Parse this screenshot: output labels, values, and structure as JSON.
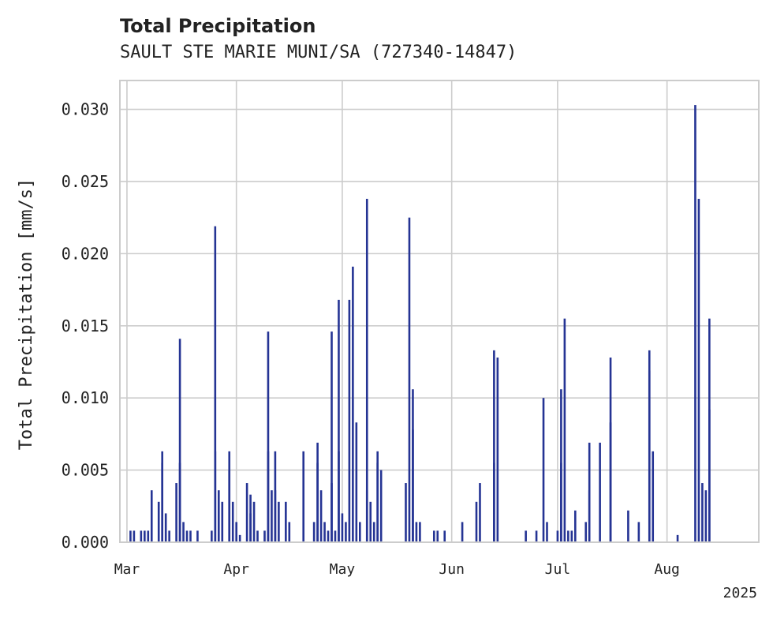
{
  "chart_data": {
    "type": "bar",
    "title": "Total Precipitation",
    "subtitle": "SAULT STE MARIE MUNI/SA (727340-14847)",
    "ylabel": "Total Precipitation [mm/s]",
    "ylim": [
      0,
      0.032
    ],
    "xlim": [
      "2025-02-27",
      "2025-08-27"
    ],
    "yticks": [
      "0.000",
      "0.005",
      "0.010",
      "0.015",
      "0.020",
      "0.025",
      "0.030"
    ],
    "xticks": [
      {
        "date": "2025-03-01",
        "label": "Mar"
      },
      {
        "date": "2025-04-01",
        "label": "Apr"
      },
      {
        "date": "2025-05-01",
        "label": "May"
      },
      {
        "date": "2025-06-01",
        "label": "Jun"
      },
      {
        "date": "2025-07-01",
        "label": "Jul"
      },
      {
        "date": "2025-08-01",
        "label": "Aug"
      }
    ],
    "year_label": "2025",
    "grid": true,
    "bar_color": "#253494",
    "points": [
      [
        "2025-03-02",
        0.0008
      ],
      [
        "2025-03-03",
        0.0008
      ],
      [
        "2025-03-05",
        0.0008
      ],
      [
        "2025-03-06",
        0.0008
      ],
      [
        "2025-03-07",
        0.0008
      ],
      [
        "2025-03-08",
        0.0036
      ],
      [
        "2025-03-10",
        0.0028
      ],
      [
        "2025-03-11",
        0.0055
      ],
      [
        "2025-03-11",
        0.0063
      ],
      [
        "2025-03-12",
        0.002
      ],
      [
        "2025-03-13",
        0.0008
      ],
      [
        "2025-03-15",
        0.0041
      ],
      [
        "2025-03-16",
        0.0055
      ],
      [
        "2025-03-16",
        0.0141
      ],
      [
        "2025-03-17",
        0.0014
      ],
      [
        "2025-03-18",
        0.0008
      ],
      [
        "2025-03-19",
        0.0008
      ],
      [
        "2025-03-21",
        0.0008
      ],
      [
        "2025-03-25",
        0.0008
      ],
      [
        "2025-03-26",
        0.0063
      ],
      [
        "2025-03-26",
        0.0219
      ],
      [
        "2025-03-27",
        0.0036
      ],
      [
        "2025-03-28",
        0.0028
      ],
      [
        "2025-03-30",
        0.005
      ],
      [
        "2025-03-30",
        0.0063
      ],
      [
        "2025-03-31",
        0.0028
      ],
      [
        "2025-04-01",
        0.0014
      ],
      [
        "2025-04-02",
        0.0005
      ],
      [
        "2025-04-04",
        0.0041
      ],
      [
        "2025-04-05",
        0.002
      ],
      [
        "2025-04-05",
        0.0033
      ],
      [
        "2025-04-06",
        0.0028
      ],
      [
        "2025-04-07",
        0.0008
      ],
      [
        "2025-04-09",
        0.0008
      ],
      [
        "2025-04-10",
        0.0146
      ],
      [
        "2025-04-10",
        0.0063
      ],
      [
        "2025-04-11",
        0.0036
      ],
      [
        "2025-04-12",
        0.0063
      ],
      [
        "2025-04-12",
        0.0036
      ],
      [
        "2025-04-13",
        0.0028
      ],
      [
        "2025-04-15",
        0.0028
      ],
      [
        "2025-04-16",
        0.0014
      ],
      [
        "2025-04-20",
        0.0063
      ],
      [
        "2025-04-23",
        0.0014
      ],
      [
        "2025-04-24",
        0.0055
      ],
      [
        "2025-04-24",
        0.0069
      ],
      [
        "2025-04-25",
        0.0036
      ],
      [
        "2025-04-26",
        0.0014
      ],
      [
        "2025-04-27",
        0.0008
      ],
      [
        "2025-04-28",
        0.0041
      ],
      [
        "2025-04-28",
        0.0146
      ],
      [
        "2025-04-29",
        0.0008
      ],
      [
        "2025-04-30",
        0.0063
      ],
      [
        "2025-04-30",
        0.0168
      ],
      [
        "2025-05-01",
        0.002
      ],
      [
        "2025-05-02",
        0.0014
      ],
      [
        "2025-05-03",
        0.0168
      ],
      [
        "2025-05-04",
        0.0191
      ],
      [
        "2025-05-05",
        0.0083
      ],
      [
        "2025-05-06",
        0.0014
      ],
      [
        "2025-05-08",
        0.0036
      ],
      [
        "2025-05-08",
        0.0238
      ],
      [
        "2025-05-09",
        0.0028
      ],
      [
        "2025-05-10",
        0.0014
      ],
      [
        "2025-05-11",
        0.0063
      ],
      [
        "2025-05-11",
        0.0055
      ],
      [
        "2025-05-12",
        0.005
      ],
      [
        "2025-05-19",
        0.0041
      ],
      [
        "2025-05-20",
        0.0225
      ],
      [
        "2025-05-21",
        0.0078
      ],
      [
        "2025-05-21",
        0.0106
      ],
      [
        "2025-05-22",
        0.0014
      ],
      [
        "2025-05-23",
        0.0014
      ],
      [
        "2025-05-27",
        0.0008
      ],
      [
        "2025-05-28",
        0.0008
      ],
      [
        "2025-05-30",
        0.0008
      ],
      [
        "2025-06-04",
        0.0014
      ],
      [
        "2025-06-08",
        0.0028
      ],
      [
        "2025-06-09",
        0.0041
      ],
      [
        "2025-06-13",
        0.0055
      ],
      [
        "2025-06-13",
        0.0133
      ],
      [
        "2025-06-14",
        0.0128
      ],
      [
        "2025-06-22",
        0.0008
      ],
      [
        "2025-06-25",
        0.0008
      ],
      [
        "2025-06-27",
        0.01
      ],
      [
        "2025-06-28",
        0.0014
      ],
      [
        "2025-07-01",
        0.0008
      ],
      [
        "2025-07-02",
        0.0055
      ],
      [
        "2025-07-02",
        0.0106
      ],
      [
        "2025-07-03",
        0.0155
      ],
      [
        "2025-07-04",
        0.0008
      ],
      [
        "2025-07-05",
        0.0008
      ],
      [
        "2025-07-06",
        0.0022
      ],
      [
        "2025-07-09",
        0.0014
      ],
      [
        "2025-07-10",
        0.0036
      ],
      [
        "2025-07-10",
        0.0069
      ],
      [
        "2025-07-13",
        0.0069
      ],
      [
        "2025-07-16",
        0.0083
      ],
      [
        "2025-07-16",
        0.0128
      ],
      [
        "2025-07-21",
        0.0022
      ],
      [
        "2025-07-24",
        0.0014
      ],
      [
        "2025-07-27",
        0.0133
      ],
      [
        "2025-07-27",
        0.0119
      ],
      [
        "2025-07-28",
        0.0063
      ],
      [
        "2025-08-04",
        0.0005
      ],
      [
        "2025-08-09",
        0.0303
      ],
      [
        "2025-08-10",
        0.0238
      ],
      [
        "2025-08-11",
        0.0041
      ],
      [
        "2025-08-12",
        0.0036
      ],
      [
        "2025-08-13",
        0.0155
      ],
      [
        "2025-08-13",
        0.0092
      ]
    ]
  }
}
